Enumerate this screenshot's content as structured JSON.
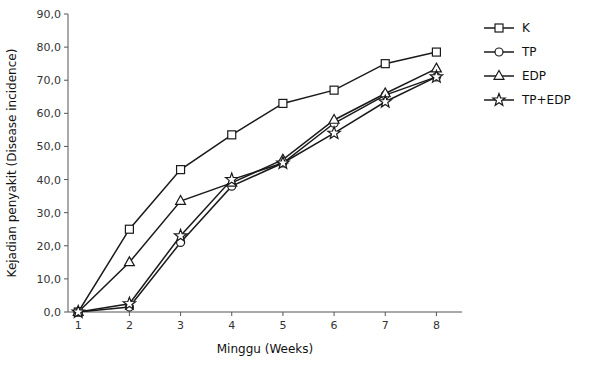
{
  "chart_data": {
    "type": "line",
    "x": [
      1,
      2,
      3,
      4,
      5,
      6,
      7,
      8
    ],
    "series": [
      {
        "name": "K",
        "color": "#1a1a1a",
        "marker": "square",
        "values": [
          0.0,
          25.0,
          43.0,
          53.5,
          63.0,
          67.0,
          75.0,
          78.5
        ]
      },
      {
        "name": "TP",
        "color": "#1a1a1a",
        "marker": "circle",
        "values": [
          0.0,
          1.5,
          21.0,
          38.0,
          45.0,
          57.0,
          65.5,
          71.0
        ]
      },
      {
        "name": "EDP",
        "color": "#1a1a1a",
        "marker": "triangle",
        "values": [
          0.0,
          15.0,
          33.5,
          39.0,
          46.0,
          58.0,
          66.0,
          73.5
        ]
      },
      {
        "name": "TP+EDP",
        "color": "#1a1a1a",
        "marker": "star",
        "values": [
          0.0,
          2.5,
          23.0,
          40.0,
          45.0,
          54.0,
          63.5,
          71.0
        ]
      }
    ],
    "x_label": "Minggu (Weeks)",
    "y_label": "Kejadian penyakit (Disease incidence)",
    "xlim": [
      0.8,
      8.5
    ],
    "xticks": [
      1,
      2,
      3,
      4,
      5,
      6,
      7,
      8
    ],
    "ylim": [
      0,
      90
    ],
    "yticks": [
      {
        "value": 0.0,
        "label": "0,0"
      },
      {
        "value": 10.0,
        "label": "10,0"
      },
      {
        "value": 20.0,
        "label": "20,0"
      },
      {
        "value": 30.0,
        "label": "30,0"
      },
      {
        "value": 40.0,
        "label": "40,0"
      },
      {
        "value": 50.0,
        "label": "50,0"
      },
      {
        "value": 60.0,
        "label": "60,0"
      },
      {
        "value": 70.0,
        "label": "70,0"
      },
      {
        "value": 80.0,
        "label": "80,0"
      },
      {
        "value": 90.0,
        "label": "90,0"
      }
    ],
    "grid": false,
    "legend": "right"
  }
}
